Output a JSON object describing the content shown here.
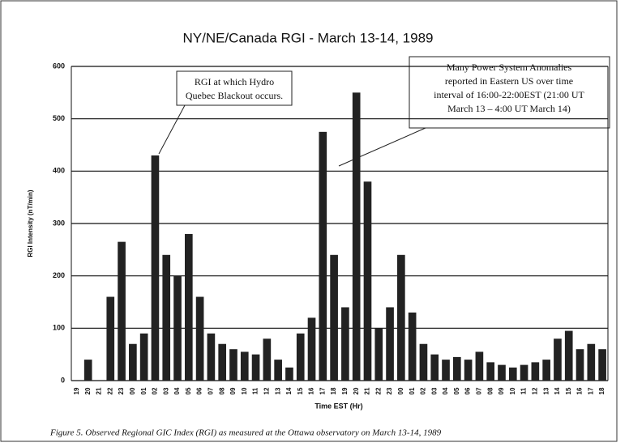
{
  "chart_data": {
    "type": "bar",
    "title": "NY/NE/Canada RGI - March 13-14, 1989",
    "y_label": "RGI Intensity (nT/min)",
    "x_label": "Time EST (Hr)",
    "caption": "Figure 5. Observed Regional GIC Index (RGI) as measured at the Ottawa observatory on March 13-14, 1989",
    "annotations": [
      {
        "lines": [
          "RGI at which Hydro",
          "Quebec Blackout occurs."
        ]
      },
      {
        "lines": [
          "Many Power System Anomalies",
          "reported in Eastern US over time",
          "interval of 16:00-22:00EST (21:00 UT",
          "March 13 – 4:00 UT March 14)"
        ]
      }
    ],
    "categories": [
      "19",
      "20",
      "21",
      "22",
      "23",
      "00",
      "01",
      "02",
      "03",
      "04",
      "05",
      "06",
      "07",
      "08",
      "09",
      "10",
      "11",
      "12",
      "13",
      "14",
      "15",
      "16",
      "17",
      "18",
      "19",
      "20",
      "21",
      "22",
      "23",
      "00",
      "01",
      "02",
      "03",
      "04",
      "05",
      "06",
      "07",
      "08",
      "09",
      "10",
      "11",
      "12",
      "13",
      "14",
      "15",
      "16",
      "17",
      "18"
    ],
    "values": [
      0,
      40,
      0,
      160,
      265,
      70,
      90,
      430,
      240,
      200,
      280,
      160,
      90,
      70,
      60,
      55,
      50,
      80,
      40,
      25,
      90,
      120,
      475,
      240,
      140,
      550,
      380,
      100,
      140,
      240,
      130,
      70,
      50,
      40,
      45,
      40,
      55,
      35,
      30,
      25,
      30,
      35,
      40,
      80,
      95,
      60,
      70,
      60
    ],
    "color": "#222222",
    "ylim": [
      0,
      600
    ],
    "yticks": [
      0,
      100,
      200,
      300,
      400,
      500,
      600
    ],
    "grid": true
  }
}
